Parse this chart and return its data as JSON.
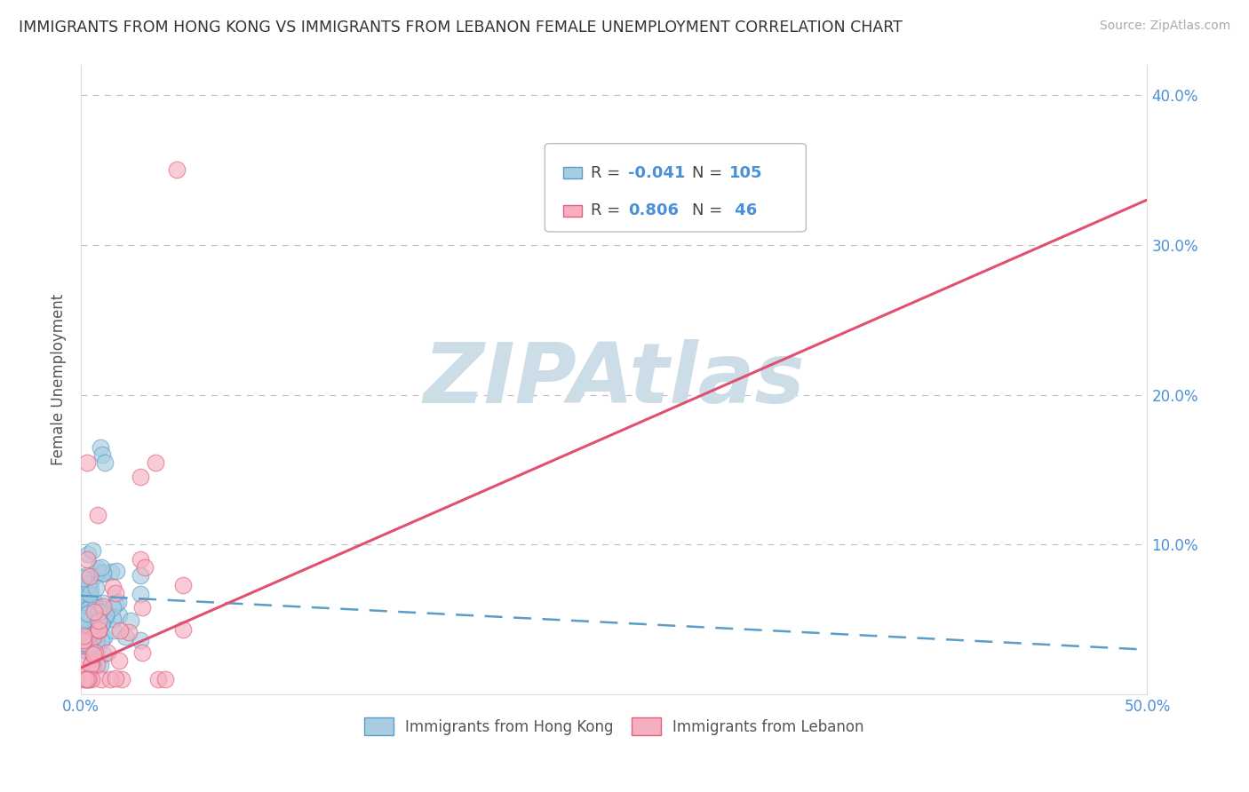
{
  "title": "IMMIGRANTS FROM HONG KONG VS IMMIGRANTS FROM LEBANON FEMALE UNEMPLOYMENT CORRELATION CHART",
  "source": "Source: ZipAtlas.com",
  "ylabel": "Female Unemployment",
  "xlim": [
    0.0,
    0.5
  ],
  "ylim": [
    0.0,
    0.42
  ],
  "xticks": [
    0.0,
    0.1,
    0.2,
    0.3,
    0.4,
    0.5
  ],
  "yticks": [
    0.0,
    0.1,
    0.2,
    0.3,
    0.4
  ],
  "xtick_labels": [
    "0.0%",
    "",
    "",
    "",
    "",
    "50.0%"
  ],
  "ytick_labels": [
    "",
    "10.0%",
    "20.0%",
    "30.0%",
    "40.0%"
  ],
  "hk_color": "#a8cce0",
  "lb_color": "#f5afc0",
  "hk_edge": "#5a9dc8",
  "lb_edge": "#e06080",
  "hk_R": -0.041,
  "hk_N": 105,
  "lb_R": 0.806,
  "lb_N": 46,
  "watermark": "ZIPAtlas",
  "watermark_color": "#ccdde8",
  "bg_color": "#ffffff",
  "grid_color": "#cccccc",
  "legend_text_color": "#4a90d9",
  "title_color": "#333333",
  "hk_line_x": [
    0.0,
    0.5
  ],
  "hk_line_y": [
    0.066,
    0.03
  ],
  "lb_line_x": [
    0.0,
    0.5
  ],
  "lb_line_y": [
    0.018,
    0.33
  ]
}
